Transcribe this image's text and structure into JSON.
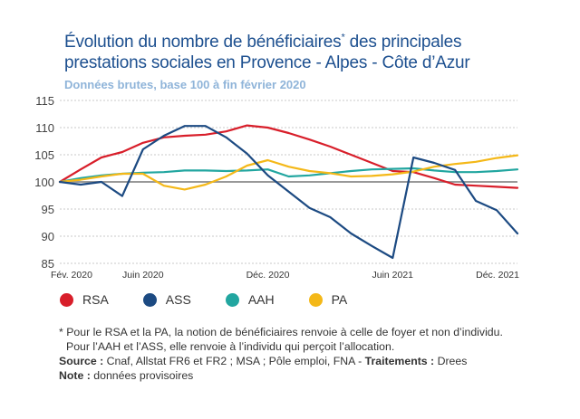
{
  "title_part1": "Évolution du nombre de bénéficiaires",
  "title_mark": "*",
  "title_part2": " des principales",
  "title_line2": "prestations sociales en Provence - Alpes - Côte d’Azur",
  "subtitle": "Données brutes, base 100 à fin février 2020",
  "notes": {
    "footnote_line1": "* Pour le RSA et la PA, la notion de bénéficiaires renvoie à celle de foyer et non d’individu.",
    "footnote_line2": "Pour l’AAH et l’ASS, elle renvoie à l’individu qui perçoit l’allocation.",
    "source_label": "Source :",
    "source_text": " Cnaf, Allstat FR6 et FR2 ; MSA ;  Pôle emploi, FNA - ",
    "treatments_label": "Traitements :",
    "treatments_text": " Drees",
    "note_label": "Note :",
    "note_text": " données provisoires"
  },
  "colors": {
    "RSA": "#d81e2a",
    "ASS": "#1c4a82",
    "AAH": "#22a6a0",
    "PA": "#f4b818",
    "baseline": "#999999",
    "grid": "#c8c8c8"
  },
  "chart_data": {
    "type": "line",
    "x": [
      "Fév. 2020",
      "Mar. 2020",
      "Avr. 2020",
      "Mai 2020",
      "Juin 2020",
      "Juil. 2020",
      "Août 2020",
      "Sept. 2020",
      "Oct. 2020",
      "Nov. 2020",
      "Déc. 2020",
      "Janv. 2021",
      "Févr. 2021",
      "Mars 2021",
      "Avr. 2021",
      "Mai 2021",
      "Juin 2021",
      "Juil. 2021",
      "Août 2021",
      "Sept. 2021",
      "Oct. 2021",
      "Nov. 2021",
      "Déc. 2021"
    ],
    "xticks": [
      "Fév. 2020",
      "Juin 2020",
      "Déc. 2020",
      "Juin 2021",
      "Déc. 2021"
    ],
    "yticks": [
      85,
      90,
      95,
      100,
      105,
      110,
      115
    ],
    "ylim": [
      85,
      115
    ],
    "baseline": 100,
    "series": [
      {
        "name": "RSA",
        "values": [
          100,
          102.3,
          104.5,
          105.5,
          107.2,
          108.2,
          108.5,
          108.7,
          109.3,
          110.4,
          110.0,
          109.0,
          107.8,
          106.5,
          105.0,
          103.5,
          102.0,
          101.8,
          100.7,
          99.5,
          99.3,
          99.1,
          98.9
        ]
      },
      {
        "name": "ASS",
        "values": [
          100,
          99.5,
          100.0,
          97.4,
          106.0,
          108.5,
          110.3,
          110.3,
          108.2,
          105.2,
          101.2,
          98.2,
          95.2,
          93.5,
          90.5,
          88.2,
          86.0,
          104.5,
          103.5,
          102.2,
          96.5,
          94.8,
          90.5
        ]
      },
      {
        "name": "AAH",
        "values": [
          100,
          100.7,
          101.2,
          101.5,
          101.7,
          101.8,
          102.1,
          102.1,
          102.0,
          102.1,
          102.3,
          101.0,
          101.2,
          101.6,
          102.0,
          102.3,
          102.4,
          102.5,
          102.1,
          101.8,
          101.8,
          102.0,
          102.3
        ]
      },
      {
        "name": "PA",
        "values": [
          100,
          100.4,
          101.0,
          101.5,
          101.5,
          99.3,
          98.6,
          99.5,
          101.0,
          103.0,
          104.0,
          102.8,
          102.0,
          101.6,
          101.0,
          101.1,
          101.4,
          101.9,
          102.8,
          103.3,
          103.7,
          104.4,
          104.9
        ]
      }
    ]
  }
}
